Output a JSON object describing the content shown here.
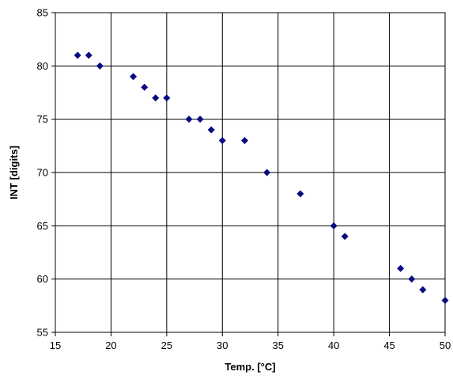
{
  "chart_data": {
    "type": "scatter",
    "xlabel": "Temp. [°C]",
    "ylabel": "INT [digits]",
    "xlim": [
      15,
      50
    ],
    "ylim": [
      55,
      85
    ],
    "xticks": [
      "15",
      "20",
      "25",
      "30",
      "35",
      "40",
      "45",
      "50"
    ],
    "yticks": [
      "55",
      "60",
      "65",
      "70",
      "75",
      "80",
      "85"
    ],
    "grid": true,
    "marker_color": "#0a0a80",
    "points": [
      {
        "x": 17,
        "y": 81
      },
      {
        "x": 18,
        "y": 81
      },
      {
        "x": 19,
        "y": 80
      },
      {
        "x": 22,
        "y": 79
      },
      {
        "x": 23,
        "y": 78
      },
      {
        "x": 24,
        "y": 77
      },
      {
        "x": 25,
        "y": 77
      },
      {
        "x": 27,
        "y": 75
      },
      {
        "x": 28,
        "y": 75
      },
      {
        "x": 29,
        "y": 74
      },
      {
        "x": 30,
        "y": 73
      },
      {
        "x": 32,
        "y": 73
      },
      {
        "x": 34,
        "y": 70
      },
      {
        "x": 37,
        "y": 68
      },
      {
        "x": 40,
        "y": 65
      },
      {
        "x": 41,
        "y": 64
      },
      {
        "x": 46,
        "y": 61
      },
      {
        "x": 47,
        "y": 60
      },
      {
        "x": 48,
        "y": 59
      },
      {
        "x": 50,
        "y": 58
      }
    ]
  }
}
